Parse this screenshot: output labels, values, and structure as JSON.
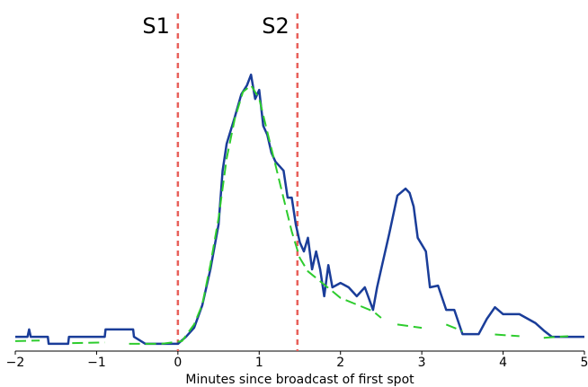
{
  "chart_data": {
    "type": "line",
    "xlabel": "Minutes since broadcast of first spot",
    "xlim": [
      -2,
      5
    ],
    "ylim": [
      0,
      100
    ],
    "xticks": [
      {
        "value": -2,
        "label": "−2"
      },
      {
        "value": -1,
        "label": "−1"
      },
      0,
      1,
      2,
      3,
      4,
      5
    ],
    "vlines": [
      {
        "x": 0,
        "label": "S1",
        "color": "#e8605a"
      },
      {
        "x": 1.47,
        "label": "S2",
        "color": "#e8605a"
      }
    ],
    "series": [
      {
        "color": "#1a3d99",
        "style": "solid",
        "x": [
          -2,
          -1.85,
          -1.83,
          -1.81,
          -1.6,
          -1.59,
          -1.35,
          -1.34,
          -0.9,
          -0.89,
          -0.55,
          -0.54,
          -0.4,
          0,
          0.1,
          0.2,
          0.3,
          0.4,
          0.5,
          0.55,
          0.6,
          0.7,
          0.78,
          0.85,
          0.9,
          0.95,
          1.0,
          1.05,
          1.1,
          1.15,
          1.2,
          1.3,
          1.35,
          1.4,
          1.45,
          1.5,
          1.55,
          1.6,
          1.65,
          1.7,
          1.75,
          1.8,
          1.85,
          1.9,
          2.0,
          2.1,
          2.2,
          2.3,
          2.4,
          2.45,
          2.5,
          2.6,
          2.7,
          2.8,
          2.85,
          2.9,
          2.95,
          3.05,
          3.1,
          3.2,
          3.3,
          3.4,
          3.5,
          3.7,
          3.8,
          3.9,
          4.0,
          4.2,
          4.4,
          4.5,
          4.6,
          5.0
        ],
        "values": [
          4.3,
          4.3,
          6.5,
          4.3,
          4.3,
          2.2,
          2.2,
          4.3,
          4.3,
          6.5,
          6.5,
          4.3,
          2.2,
          2.2,
          4.3,
          7.0,
          13.8,
          24.6,
          38.1,
          54.3,
          62.4,
          70.5,
          77.3,
          80,
          83.2,
          75.9,
          78.6,
          67.8,
          65.1,
          59.7,
          57,
          54.3,
          46.2,
          46.2,
          38.1,
          32.7,
          30,
          34.1,
          24.6,
          30,
          24.6,
          16.5,
          25.9,
          19.2,
          20.5,
          19.2,
          16.5,
          19.2,
          12.4,
          19.2,
          24.6,
          35.4,
          46.8,
          48.9,
          47.6,
          43.5,
          34.1,
          30,
          19.2,
          19.7,
          12.4,
          12.4,
          5.1,
          5.1,
          9.7,
          13.2,
          11.1,
          11.1,
          8.4,
          6.2,
          4.3,
          4.3
        ]
      },
      {
        "color": "#2ecc2e",
        "style": "dashed",
        "x": [
          -2,
          -1.7,
          -1.5,
          -1.3,
          -0.9,
          -0.7,
          -0.6,
          -0.2,
          0.05,
          0.2,
          0.3,
          0.4,
          0.5,
          0.6,
          0.7,
          0.8,
          0.9,
          1.0,
          1.1,
          1.2,
          1.3,
          1.4,
          1.5,
          1.6,
          1.7,
          1.8,
          1.9,
          2.0,
          2.2,
          2.4,
          2.5,
          2.6,
          2.7,
          3.0,
          3.15,
          3.3,
          3.5,
          3.7,
          3.9,
          4.2,
          4.35,
          4.5,
          4.8
        ],
        "values": [
          3,
          3.2,
          null,
          2.4,
          2.6,
          null,
          2.2,
          2.2,
          3,
          8,
          14,
          26,
          40,
          58,
          70,
          78,
          80,
          76,
          66,
          56,
          46,
          36,
          28,
          24,
          22,
          20,
          18,
          16,
          14,
          12,
          10,
          null,
          8,
          7,
          null,
          8,
          6,
          null,
          5,
          4.5,
          null,
          4,
          4.5
        ]
      }
    ]
  }
}
